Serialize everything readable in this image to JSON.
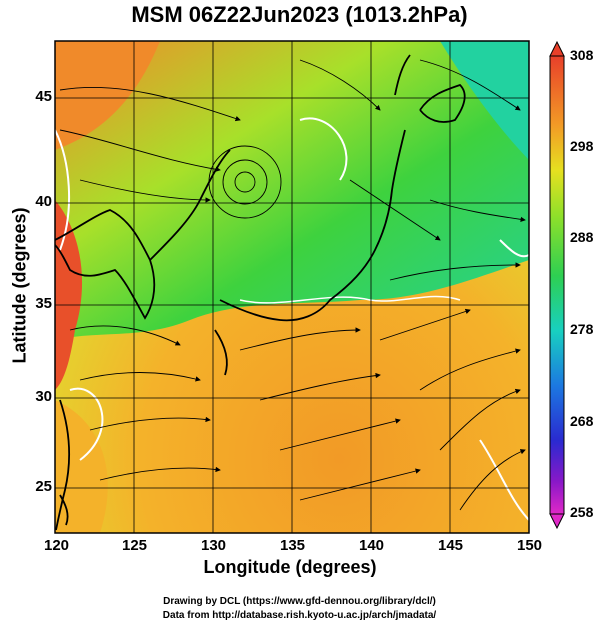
{
  "title": "MSM 06Z22Jun2023 (1013.2hPa)",
  "x_axis": {
    "label": "Longitude (degrees)",
    "ticks": [
      "120",
      "125",
      "130",
      "135",
      "140",
      "145",
      "150"
    ]
  },
  "y_axis": {
    "label": "Latitude  (degrees)",
    "ticks": [
      "25",
      "30",
      "35",
      "40",
      "45"
    ]
  },
  "colorbar": {
    "ticks": [
      "308",
      "298",
      "288",
      "278",
      "268",
      "258"
    ]
  },
  "footer": {
    "line1": "Drawing by DCL (https://www.gfd-dennou.org/library/dcl/)",
    "line2": "Data from http://database.rish.kyoto-u.ac.jp/arch/jmadata/"
  },
  "colors": {
    "hot": "#e8402a",
    "warm": "#f29a26",
    "mild": "#9be02a",
    "cool": "#2ecf52",
    "cold": "#18d0c0",
    "land_outline": "#000000",
    "contour": "#ffffff"
  }
}
